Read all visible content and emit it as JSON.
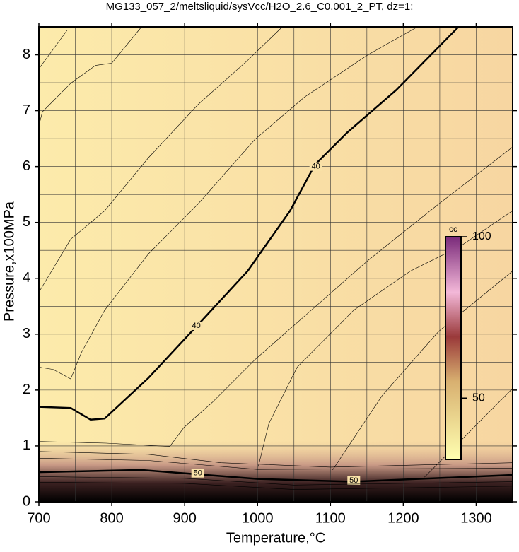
{
  "chart_data": {
    "type": "contour",
    "title": "MG133_057_2/meltsliquid/sysVcc/H2O_2.6_C0.001_2_PT, dz=1:",
    "xlabel": "Temperature,°C",
    "ylabel": "Pressure,x100MPa",
    "xlim": [
      700,
      1350
    ],
    "ylim": [
      0,
      8.5
    ],
    "xticks": [
      700,
      800,
      900,
      1000,
      1100,
      1200,
      1300
    ],
    "yticks": [
      0,
      1,
      2,
      3,
      4,
      5,
      6,
      7,
      8
    ],
    "xgrid": [
      700,
      750,
      800,
      850,
      900,
      950,
      1000,
      1050,
      1100,
      1150,
      1200,
      1250,
      1300,
      1350
    ],
    "ygrid": [
      0,
      0.5,
      1,
      1.5,
      2,
      2.5,
      3,
      3.5,
      4,
      4.5,
      5,
      5.5,
      6,
      6.5,
      7,
      7.5,
      8
    ],
    "grid": true,
    "contours": [
      {
        "level": 40,
        "bold": true,
        "x": [
          700,
          743.7,
          770.9,
          790.3,
          850.5,
          918.4,
          986.4,
          1044.7,
          1078.6,
          1122.3,
          1190.3,
          1275.7
        ],
        "y": [
          1.7,
          1.68,
          1.47,
          1.49,
          2.22,
          3.17,
          4.13,
          5.21,
          6.03,
          6.6,
          7.37,
          8.5
        ],
        "label_x": [
          1080,
          916
        ],
        "label_y": [
          6.0,
          3.15
        ]
      },
      {
        "level": 50,
        "bold": true,
        "x": [
          700,
          840,
          1000,
          1130,
          1350
        ],
        "y": [
          0.53,
          0.57,
          0.41,
          0.36,
          0.48
        ],
        "label_x": [
          918,
          1132
        ],
        "label_y": [
          0.51,
          0.38
        ]
      },
      {
        "x": [
          700,
          743.7,
          790.3,
          850.5,
          918.4,
          986.4,
          1034
        ],
        "y": [
          3.75,
          4.7,
          5.21,
          6.16,
          7.11,
          7.9,
          8.5
        ]
      },
      {
        "x": [
          700,
          704.9,
          743.7,
          777.7,
          800,
          840.8
        ],
        "y": [
          6.73,
          6.98,
          7.49,
          7.81,
          7.85,
          8.5
        ]
      },
      {
        "x": [
          700,
          738.8
        ],
        "y": [
          7.75,
          8.44
        ]
      },
      {
        "x": [
          700,
          719.4,
          743.7,
          758.3,
          790.3,
          850.5,
          918.4,
          996,
          1064.1,
          1151.5,
          1219.4
        ],
        "y": [
          2.41,
          2.37,
          2.2,
          2.67,
          3.43,
          4.44,
          5.33,
          6.48,
          7.24,
          8.0,
          8.5
        ]
      },
      {
        "x": [
          700,
          792.2,
          879.6,
          899,
          937.9,
          996.1,
          1073.8,
          1151.5,
          1248.5,
          1350
        ],
        "y": [
          1.08,
          1.05,
          0.99,
          1.33,
          1.78,
          2.54,
          3.43,
          4.32,
          5.33,
          6.35
        ]
      },
      {
        "x": [
          1001,
          1015.5,
          1054.4,
          1132,
          1209.7,
          1277.7,
          1350
        ],
        "y": [
          0.63,
          1.4,
          2.41,
          3.43,
          4.13,
          4.57,
          5.21
        ]
      },
      {
        "x": [
          1103,
          1170.9,
          1248.5,
          1350
        ],
        "y": [
          0.57,
          1.9,
          3.05,
          4.13
        ]
      },
      {
        "x": [
          1229,
          1350
        ],
        "y": [
          0.44,
          2.03
        ]
      },
      {
        "x": [
          700,
          850,
          950,
          1100,
          1350
        ],
        "y": [
          0.9,
          0.85,
          0.7,
          0.62,
          0.7
        ]
      },
      {
        "x": [
          700,
          850,
          1000,
          1350
        ],
        "y": [
          0.78,
          0.74,
          0.58,
          0.6
        ]
      },
      {
        "x": [
          700,
          900,
          1050,
          1350
        ],
        "y": [
          0.45,
          0.42,
          0.3,
          0.36
        ]
      },
      {
        "x": [
          700,
          900,
          1050,
          1350
        ],
        "y": [
          0.35,
          0.33,
          0.22,
          0.28
        ]
      }
    ],
    "colorbar": {
      "label": "cc",
      "lim": [
        31,
        100
      ],
      "ticks": [
        50,
        100
      ]
    }
  }
}
